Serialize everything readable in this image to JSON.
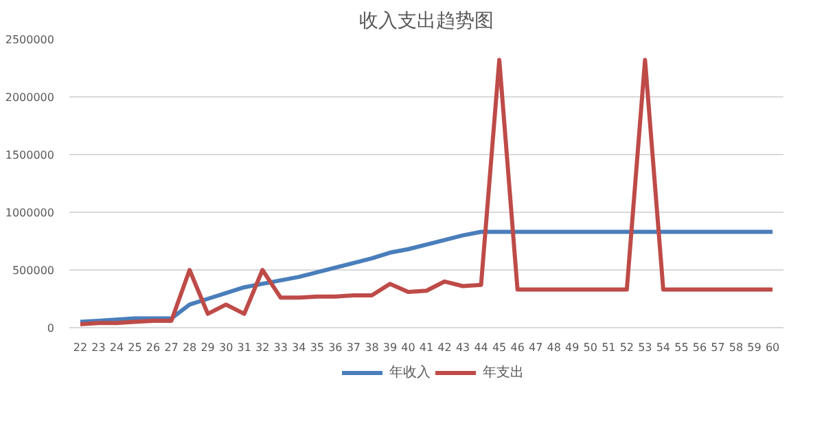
{
  "chart_data": {
    "type": "line",
    "title": "收入支出趋势图",
    "categories": [
      "22",
      "23",
      "24",
      "25",
      "26",
      "27",
      "28",
      "29",
      "30",
      "31",
      "32",
      "33",
      "34",
      "35",
      "36",
      "37",
      "38",
      "39",
      "40",
      "41",
      "42",
      "43",
      "44",
      "45",
      "46",
      "47",
      "48",
      "49",
      "50",
      "51",
      "52",
      "53",
      "54",
      "55",
      "56",
      "57",
      "58",
      "59",
      "60"
    ],
    "series": [
      {
        "name": "年收入",
        "color": "#4a7ebb",
        "values": [
          50000,
          60000,
          70000,
          80000,
          80000,
          80000,
          200000,
          250000,
          300000,
          350000,
          380000,
          410000,
          440000,
          480000,
          520000,
          560000,
          600000,
          650000,
          680000,
          720000,
          760000,
          800000,
          830000,
          830000,
          830000,
          830000,
          830000,
          830000,
          830000,
          830000,
          830000,
          830000,
          830000,
          830000,
          830000,
          830000,
          830000,
          830000,
          830000
        ]
      },
      {
        "name": "年支出",
        "color": "#be4b48",
        "values": [
          30000,
          40000,
          40000,
          50000,
          60000,
          60000,
          500000,
          120000,
          200000,
          120000,
          500000,
          260000,
          260000,
          270000,
          270000,
          280000,
          280000,
          380000,
          310000,
          320000,
          400000,
          360000,
          370000,
          2320000,
          330000,
          330000,
          330000,
          330000,
          330000,
          330000,
          330000,
          2320000,
          330000,
          330000,
          330000,
          330000,
          330000,
          330000,
          330000
        ]
      }
    ],
    "ylim": [
      0,
      2500000
    ],
    "yticks": [
      0,
      500000,
      1000000,
      1500000,
      2000000,
      2500000
    ],
    "grid": "y",
    "legend": "bottom",
    "marker": "none",
    "line_style": "solid"
  }
}
